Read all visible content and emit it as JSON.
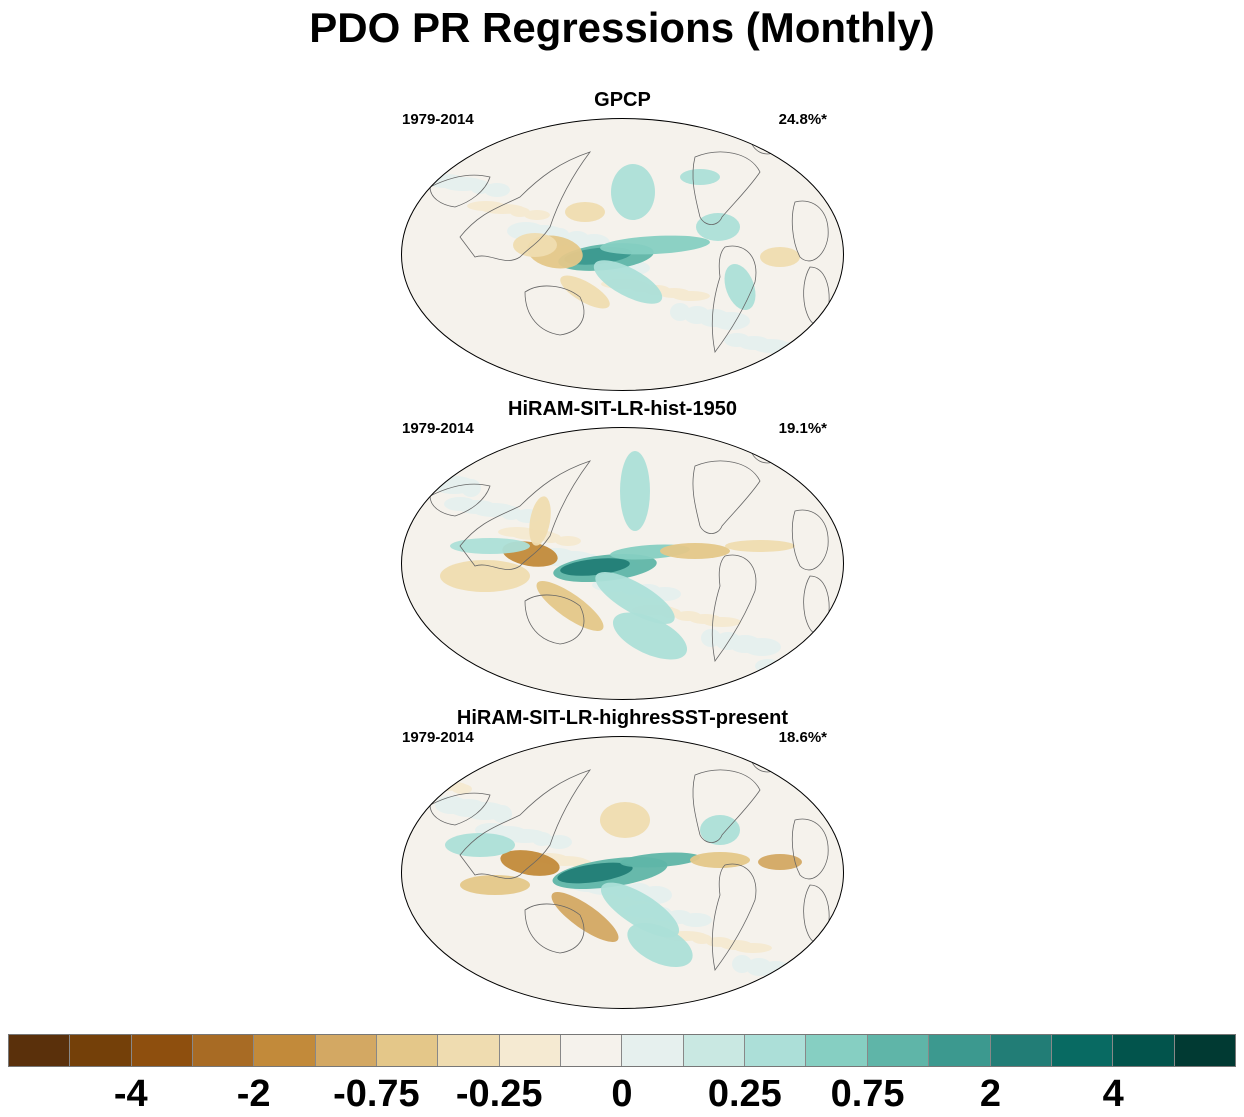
{
  "figure": {
    "title": "PDO PR Regressions (Monthly)"
  },
  "panels": [
    {
      "title": "GPCP",
      "period": "1979-2014",
      "variance": "24.8%*",
      "pattern": "obs"
    },
    {
      "title": "HiRAM-SIT-LR-hist-1950",
      "period": "1979-2014",
      "variance": "19.1%*",
      "pattern": "model1"
    },
    {
      "title": "HiRAM-SIT-LR-highresSST-present",
      "period": "1979-2014",
      "variance": "18.6%*",
      "pattern": "model2"
    }
  ],
  "colorbar": {
    "colors": [
      "#5a300b",
      "#744009",
      "#8e4f0e",
      "#a86b24",
      "#c28a3a",
      "#d3a863",
      "#e4c789",
      "#efdcb0",
      "#f5ead2",
      "#f5f2ec",
      "#e6f0ee",
      "#c9e8e2",
      "#acdfd8",
      "#86cfc2",
      "#5fb5a8",
      "#3c998f",
      "#227d76",
      "#086a62",
      "#02544c",
      "#013a33"
    ],
    "tick_labels": [
      {
        "text": "-4",
        "boundary": 2
      },
      {
        "text": "-2",
        "boundary": 4
      },
      {
        "text": "-0.75",
        "boundary": 6
      },
      {
        "text": "-0.25",
        "boundary": 8
      },
      {
        "text": "0",
        "boundary": 10
      },
      {
        "text": "0.25",
        "boundary": 12
      },
      {
        "text": "0.75",
        "boundary": 14
      },
      {
        "text": "2",
        "boundary": 16
      },
      {
        "text": "4",
        "boundary": 18
      }
    ]
  }
}
